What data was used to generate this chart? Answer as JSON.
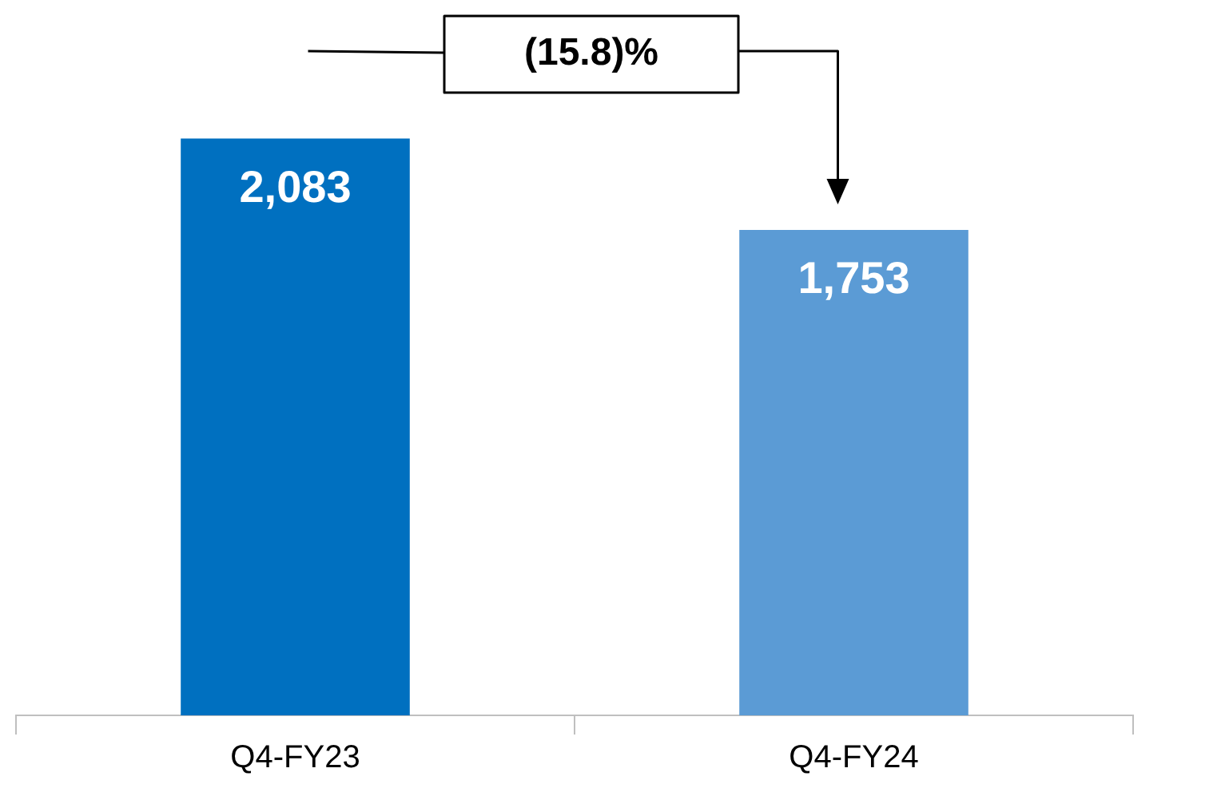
{
  "chart_data": {
    "type": "bar",
    "categories": [
      "Q4-FY23",
      "Q4-FY24"
    ],
    "values": [
      2083,
      1753
    ],
    "colors": [
      "#0070c0",
      "#5b9bd5"
    ],
    "value_labels": [
      "2,083",
      "1,753"
    ],
    "annotations": [
      "(15.8)%"
    ],
    "legend": false,
    "grid": false
  }
}
